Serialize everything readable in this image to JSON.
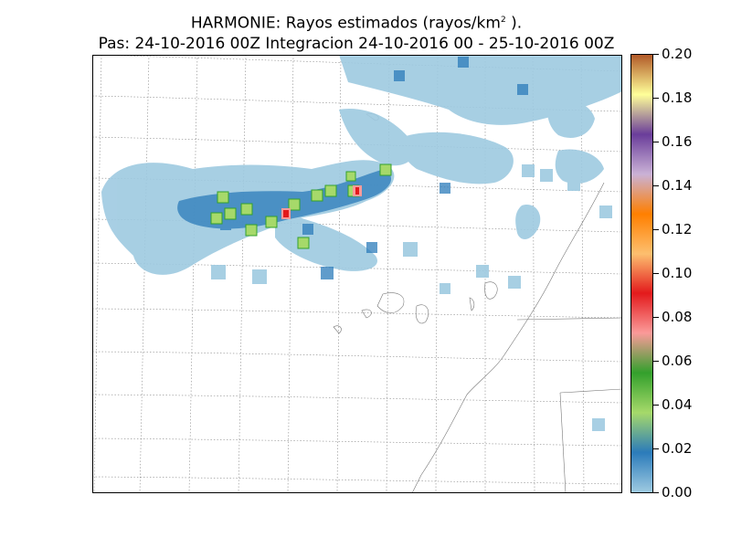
{
  "title": {
    "main_prefix": "HARMONIE: Rayos estimados  (rayos/km",
    "superscript": "2",
    "main_suffix": " ).",
    "subtitle": "Pas: 24-10-2016 00Z Integracion 24-10-2016 00 - 25-10-2016 00Z"
  },
  "colorbar": {
    "tick_labels": [
      "0.20",
      "0.18",
      "0.16",
      "0.14",
      "0.12",
      "0.10",
      "0.08",
      "0.06",
      "0.04",
      "0.02",
      "0.00"
    ],
    "range": [
      0.0,
      0.2
    ],
    "colors": [
      "#9ecae1",
      "#2b7bba",
      "#a6d96a",
      "#33a02c",
      "#fb9a99",
      "#e31a1c",
      "#fdbf6f",
      "#ff7f00",
      "#cab2d6",
      "#6a3d9a",
      "#ffff99",
      "#b15928"
    ]
  },
  "map": {
    "gridlines": "dotted",
    "lightning_clusters": [
      {
        "region": "main band west",
        "level": 0.01
      },
      {
        "region": "main band center",
        "level": 0.04
      },
      {
        "region": "center peak",
        "level": 0.1
      },
      {
        "region": "east peak",
        "level": 0.11
      },
      {
        "region": "northeast scatter",
        "level": 0.005
      }
    ]
  }
}
